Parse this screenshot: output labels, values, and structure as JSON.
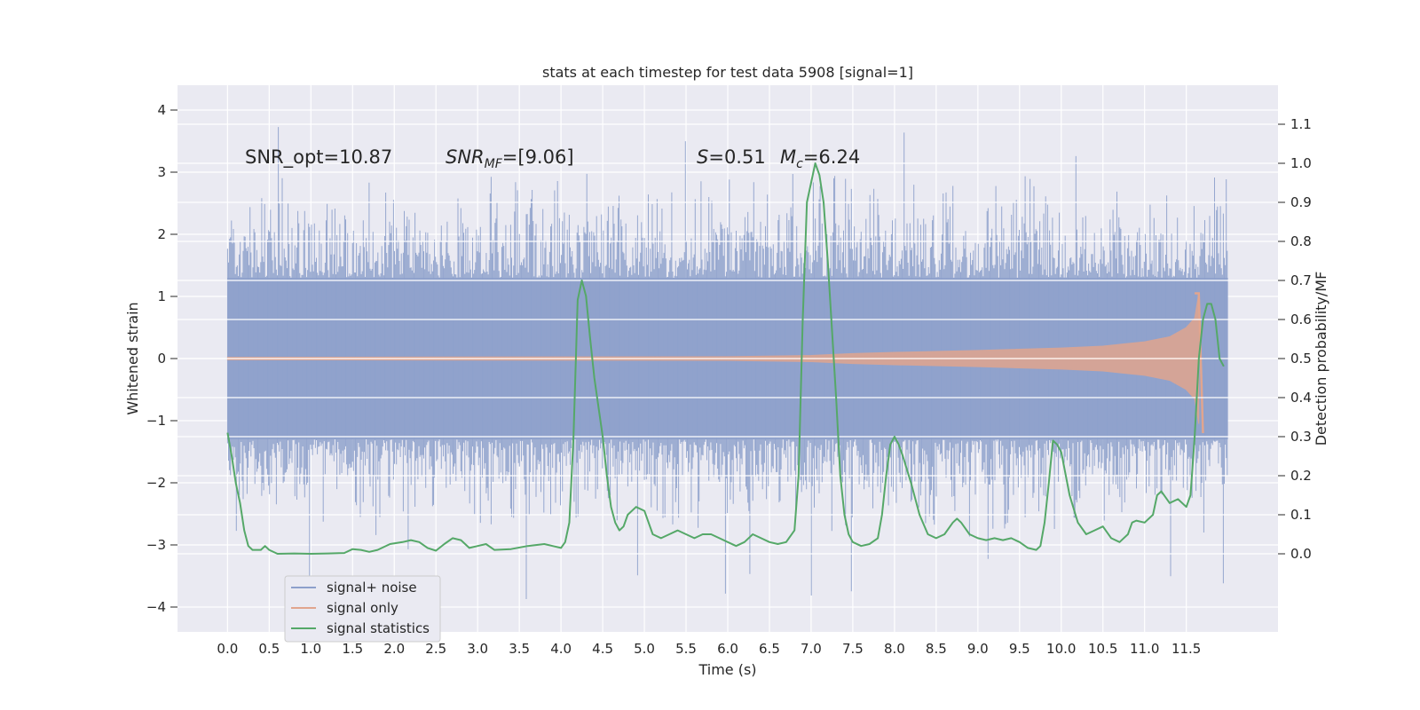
{
  "chart_data": {
    "type": "line",
    "title": "stats at each timestep for test data 5908 [signal=1]",
    "xlabel": "Time (s)",
    "ylabel": "Whitened strain",
    "ylabel_right": "Detection probability/MF",
    "xlim": [
      -0.6,
      12.6
    ],
    "ylim": [
      -4.4,
      4.4
    ],
    "ylim_right": [
      -0.2,
      1.2
    ],
    "x_ticks": [
      "0.0",
      "0.5",
      "1.0",
      "1.5",
      "2.0",
      "2.5",
      "3.0",
      "3.5",
      "4.0",
      "4.5",
      "5.0",
      "5.5",
      "6.0",
      "6.5",
      "7.0",
      "7.5",
      "8.0",
      "8.5",
      "9.0",
      "9.5",
      "10.0",
      "10.5",
      "11.0",
      "11.5"
    ],
    "y_ticks": [
      "−4",
      "−3",
      "−2",
      "−1",
      "0",
      "1",
      "2",
      "3",
      "4"
    ],
    "y_ticks_right": [
      "0.0",
      "0.1",
      "0.2",
      "0.3",
      "0.4",
      "0.5",
      "0.6",
      "0.7",
      "0.8",
      "0.9",
      "1.0",
      "1.1"
    ],
    "grid": true,
    "legend_position": "lower-left",
    "annotations": {
      "snr_opt": "SNR_opt=10.87",
      "snr_mf_main": "SNR",
      "snr_mf_sub": "MF",
      "snr_mf_value": "=[9.06]",
      "s_symbol": "S",
      "s_value": "=0.51",
      "mc_symbol": "M",
      "mc_sub": "c",
      "mc_value": "=6.24"
    },
    "series": [
      {
        "name": "signal+ noise",
        "color": "#8da0cb",
        "style": "dense noise trace",
        "t_range": [
          0.0,
          12.0
        ],
        "typical_amplitude": 1.3,
        "max_value": 4.1,
        "min_value": -3.9
      },
      {
        "name": "signal only",
        "color": "#e1a58e",
        "style": "chirp envelope",
        "envelope": {
          "t": [
            0.0,
            6.0,
            7.0,
            7.5,
            8.0,
            9.0,
            10.0,
            10.5,
            11.0,
            11.3,
            11.5,
            11.6,
            11.65,
            11.7
          ],
          "amp": [
            0.02,
            0.03,
            0.05,
            0.08,
            0.1,
            0.13,
            0.17,
            0.2,
            0.27,
            0.35,
            0.5,
            0.65,
            1.05,
            -1.2
          ]
        }
      },
      {
        "name": "signal statistics",
        "color": "#55a868",
        "axis": "right",
        "points": [
          [
            0.0,
            0.31
          ],
          [
            0.05,
            0.25
          ],
          [
            0.1,
            0.18
          ],
          [
            0.15,
            0.13
          ],
          [
            0.2,
            0.06
          ],
          [
            0.25,
            0.02
          ],
          [
            0.3,
            0.01
          ],
          [
            0.4,
            0.01
          ],
          [
            0.45,
            0.02
          ],
          [
            0.5,
            0.01
          ],
          [
            0.6,
            0.0
          ],
          [
            0.8,
            0.001
          ],
          [
            1.0,
            0.0
          ],
          [
            1.2,
            0.001
          ],
          [
            1.4,
            0.002
          ],
          [
            1.5,
            0.012
          ],
          [
            1.6,
            0.01
          ],
          [
            1.7,
            0.005
          ],
          [
            1.8,
            0.01
          ],
          [
            1.95,
            0.025
          ],
          [
            2.1,
            0.03
          ],
          [
            2.2,
            0.035
          ],
          [
            2.3,
            0.03
          ],
          [
            2.4,
            0.015
          ],
          [
            2.5,
            0.008
          ],
          [
            2.6,
            0.025
          ],
          [
            2.7,
            0.04
          ],
          [
            2.8,
            0.035
          ],
          [
            2.9,
            0.015
          ],
          [
            3.0,
            0.02
          ],
          [
            3.1,
            0.025
          ],
          [
            3.2,
            0.01
          ],
          [
            3.4,
            0.012
          ],
          [
            3.6,
            0.02
          ],
          [
            3.8,
            0.025
          ],
          [
            3.9,
            0.02
          ],
          [
            4.0,
            0.015
          ],
          [
            4.05,
            0.03
          ],
          [
            4.1,
            0.08
          ],
          [
            4.15,
            0.3
          ],
          [
            4.2,
            0.65
          ],
          [
            4.25,
            0.7
          ],
          [
            4.3,
            0.66
          ],
          [
            4.35,
            0.55
          ],
          [
            4.4,
            0.45
          ],
          [
            4.5,
            0.3
          ],
          [
            4.55,
            0.2
          ],
          [
            4.6,
            0.12
          ],
          [
            4.65,
            0.08
          ],
          [
            4.7,
            0.06
          ],
          [
            4.75,
            0.07
          ],
          [
            4.8,
            0.1
          ],
          [
            4.9,
            0.12
          ],
          [
            5.0,
            0.11
          ],
          [
            5.05,
            0.08
          ],
          [
            5.1,
            0.05
          ],
          [
            5.2,
            0.04
          ],
          [
            5.3,
            0.05
          ],
          [
            5.4,
            0.06
          ],
          [
            5.5,
            0.05
          ],
          [
            5.6,
            0.04
          ],
          [
            5.7,
            0.05
          ],
          [
            5.8,
            0.05
          ],
          [
            5.9,
            0.04
          ],
          [
            6.0,
            0.03
          ],
          [
            6.1,
            0.02
          ],
          [
            6.2,
            0.03
          ],
          [
            6.3,
            0.05
          ],
          [
            6.4,
            0.04
          ],
          [
            6.5,
            0.03
          ],
          [
            6.6,
            0.025
          ],
          [
            6.7,
            0.03
          ],
          [
            6.8,
            0.06
          ],
          [
            6.85,
            0.2
          ],
          [
            6.9,
            0.6
          ],
          [
            6.95,
            0.9
          ],
          [
            7.0,
            0.95
          ],
          [
            7.05,
            1.0
          ],
          [
            7.1,
            0.97
          ],
          [
            7.15,
            0.9
          ],
          [
            7.2,
            0.75
          ],
          [
            7.3,
            0.4
          ],
          [
            7.35,
            0.2
          ],
          [
            7.4,
            0.1
          ],
          [
            7.45,
            0.05
          ],
          [
            7.5,
            0.03
          ],
          [
            7.6,
            0.02
          ],
          [
            7.7,
            0.025
          ],
          [
            7.8,
            0.04
          ],
          [
            7.85,
            0.1
          ],
          [
            7.9,
            0.2
          ],
          [
            7.95,
            0.28
          ],
          [
            8.0,
            0.3
          ],
          [
            8.05,
            0.28
          ],
          [
            8.1,
            0.25
          ],
          [
            8.2,
            0.18
          ],
          [
            8.3,
            0.1
          ],
          [
            8.4,
            0.05
          ],
          [
            8.5,
            0.04
          ],
          [
            8.6,
            0.05
          ],
          [
            8.7,
            0.08
          ],
          [
            8.75,
            0.09
          ],
          [
            8.8,
            0.08
          ],
          [
            8.9,
            0.05
          ],
          [
            9.0,
            0.04
          ],
          [
            9.1,
            0.035
          ],
          [
            9.2,
            0.04
          ],
          [
            9.3,
            0.035
          ],
          [
            9.4,
            0.04
          ],
          [
            9.5,
            0.03
          ],
          [
            9.6,
            0.015
          ],
          [
            9.7,
            0.01
          ],
          [
            9.75,
            0.02
          ],
          [
            9.8,
            0.08
          ],
          [
            9.85,
            0.18
          ],
          [
            9.9,
            0.29
          ],
          [
            9.95,
            0.28
          ],
          [
            10.0,
            0.26
          ],
          [
            10.1,
            0.15
          ],
          [
            10.2,
            0.08
          ],
          [
            10.3,
            0.05
          ],
          [
            10.4,
            0.06
          ],
          [
            10.5,
            0.07
          ],
          [
            10.6,
            0.04
          ],
          [
            10.7,
            0.03
          ],
          [
            10.8,
            0.05
          ],
          [
            10.85,
            0.08
          ],
          [
            10.9,
            0.085
          ],
          [
            11.0,
            0.08
          ],
          [
            11.1,
            0.1
          ],
          [
            11.15,
            0.15
          ],
          [
            11.2,
            0.16
          ],
          [
            11.3,
            0.13
          ],
          [
            11.4,
            0.14
          ],
          [
            11.5,
            0.12
          ],
          [
            11.55,
            0.15
          ],
          [
            11.6,
            0.3
          ],
          [
            11.65,
            0.5
          ],
          [
            11.7,
            0.6
          ],
          [
            11.75,
            0.64
          ],
          [
            11.8,
            0.64
          ],
          [
            11.85,
            0.6
          ],
          [
            11.9,
            0.5
          ],
          [
            11.95,
            0.48
          ]
        ]
      }
    ]
  }
}
